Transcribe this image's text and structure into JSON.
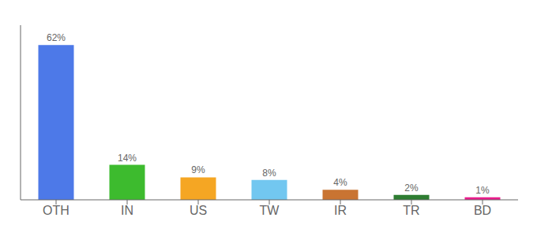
{
  "chart_data": {
    "type": "bar",
    "categories": [
      "OTH",
      "IN",
      "US",
      "TW",
      "IR",
      "TR",
      "BD"
    ],
    "values": [
      62,
      14,
      9,
      8,
      4,
      2,
      1
    ],
    "value_labels": [
      "62%",
      "14%",
      "9%",
      "8%",
      "4%",
      "2%",
      "1%"
    ],
    "colors": [
      "#4d79e8",
      "#3dbb2e",
      "#f5a623",
      "#72c7f0",
      "#c97432",
      "#2e7d32",
      "#e91e8c"
    ],
    "ylim": [
      0,
      70
    ],
    "yticks": [],
    "data_labels": true,
    "tick_labels": "x",
    "grid": false
  }
}
